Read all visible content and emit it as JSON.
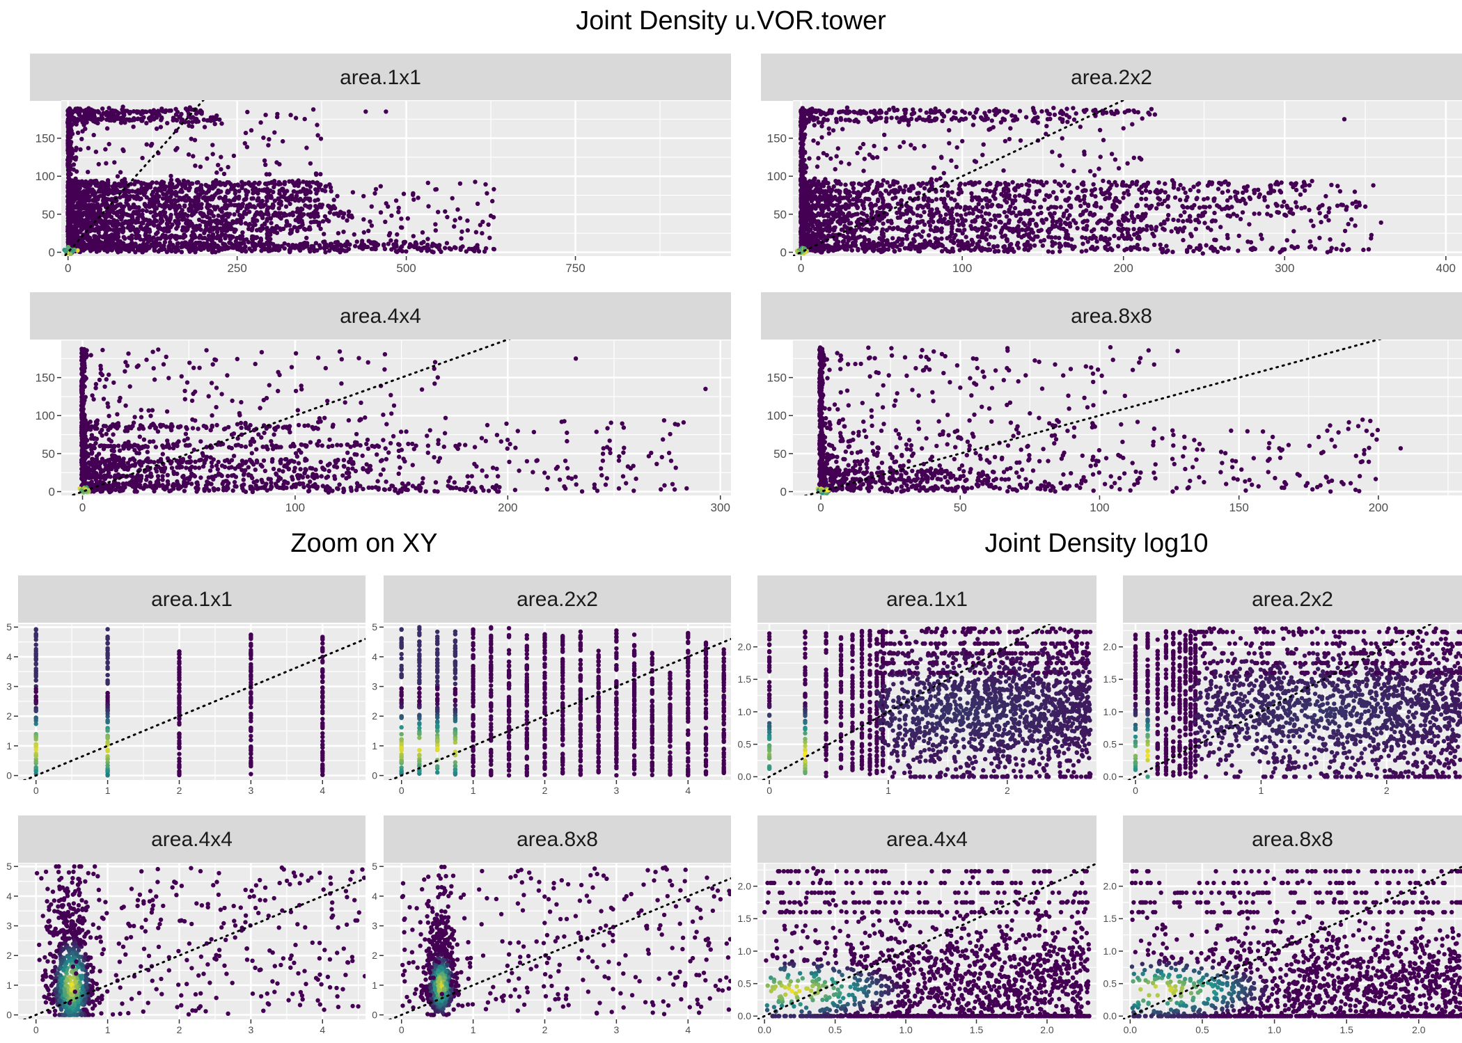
{
  "titles": {
    "main": "Joint Density u.VOR.tower",
    "zoom": "Zoom on XY",
    "log": "Joint Density log10"
  },
  "colors": {
    "panel_bg": "#ebebeb",
    "strip_bg": "#d9d9d9",
    "grid": "#ffffff",
    "point_low": "#440154",
    "point_mid": "#21908c",
    "point_high": "#fde725"
  },
  "chart_data": [
    {
      "type": "scatter",
      "group": "Joint Density u.VOR.tower",
      "facet": "area.1x1",
      "xlim": [
        -10,
        980
      ],
      "ylim": [
        -5,
        200
      ],
      "x_ticks": [
        0,
        250,
        500,
        750
      ],
      "x_tick_labels": [
        "0",
        "250",
        "500",
        "750"
      ],
      "y_ticks": [
        0,
        50,
        100,
        150
      ],
      "y_tick_labels": [
        "0",
        "50",
        "100",
        "150"
      ],
      "bands_y": [
        185,
        175,
        90,
        80,
        70,
        60,
        50,
        40,
        30,
        20,
        10,
        5
      ],
      "band_x_ends": [
        200,
        220,
        390,
        390,
        380,
        400,
        420,
        380,
        360,
        300,
        560,
        620
      ],
      "scatter_x_max": 630,
      "scatter_y_max": 188,
      "isolated_points": [
        [
          440,
          185
        ],
        [
          470,
          185
        ],
        [
          625,
          48
        ],
        [
          612,
          25
        ],
        [
          560,
          12
        ]
      ],
      "hotspot": [
        2,
        2
      ],
      "diagonal": true
    },
    {
      "type": "scatter",
      "group": "Joint Density u.VOR.tower",
      "facet": "area.2x2",
      "xlim": [
        -5,
        410
      ],
      "ylim": [
        -5,
        200
      ],
      "x_ticks": [
        0,
        100,
        200,
        300,
        400
      ],
      "x_tick_labels": [
        "0",
        "100",
        "200",
        "300",
        "400"
      ],
      "y_ticks": [
        0,
        50,
        100,
        150
      ],
      "y_tick_labels": [
        "0",
        "50",
        "100",
        "150"
      ],
      "bands_y": [
        185,
        175,
        90,
        80,
        70,
        60,
        50,
        40,
        30,
        20,
        10,
        5
      ],
      "band_x_ends": [
        220,
        170,
        320,
        300,
        280,
        350,
        330,
        260,
        240,
        210,
        190,
        330
      ],
      "scatter_x_max": 360,
      "scatter_y_max": 188,
      "isolated_points": [
        [
          337,
          175
        ],
        [
          355,
          88
        ],
        [
          280,
          5
        ],
        [
          270,
          70
        ],
        [
          350,
          60
        ]
      ],
      "hotspot": [
        1,
        1
      ],
      "diagonal": true
    },
    {
      "type": "scatter",
      "group": "Joint Density u.VOR.tower",
      "facet": "area.4x4",
      "xlim": [
        -10,
        305
      ],
      "ylim": [
        -5,
        200
      ],
      "x_ticks": [
        0,
        100,
        200,
        300
      ],
      "x_tick_labels": [
        "0",
        "100",
        "200",
        "300"
      ],
      "y_ticks": [
        0,
        50,
        100,
        150
      ],
      "y_tick_labels": [
        "0",
        "50",
        "100",
        "150"
      ],
      "bands_y": [
        85,
        60,
        40,
        30,
        20,
        10,
        5
      ],
      "band_x_ends": [
        120,
        180,
        150,
        140,
        130,
        110,
        200
      ],
      "scatter_x_max": 285,
      "scatter_y_max": 188,
      "isolated_points": [
        [
          272,
          3
        ],
        [
          280,
          88
        ],
        [
          293,
          135
        ],
        [
          245,
          57
        ],
        [
          232,
          175
        ]
      ],
      "hotspot": [
        1,
        1
      ],
      "diagonal": true
    },
    {
      "type": "scatter",
      "group": "Joint Density u.VOR.tower",
      "facet": "area.8x8",
      "xlim": [
        -10,
        230
      ],
      "ylim": [
        -5,
        200
      ],
      "x_ticks": [
        0,
        50,
        100,
        150,
        200
      ],
      "x_tick_labels": [
        "0",
        "50",
        "100",
        "150",
        "200"
      ],
      "y_ticks": [
        0,
        50,
        100,
        150
      ],
      "y_tick_labels": [
        "0",
        "50",
        "100",
        "150"
      ],
      "bands_y": [
        5,
        15,
        25
      ],
      "band_x_ends": [
        90,
        70,
        60
      ],
      "scatter_x_max": 200,
      "scatter_y_max": 190,
      "isolated_points": [
        [
          192,
          47
        ],
        [
          208,
          57
        ],
        [
          171,
          23
        ],
        [
          137,
          55
        ],
        [
          128,
          185
        ]
      ],
      "hotspot": [
        1,
        1
      ],
      "diagonal": true
    },
    {
      "type": "scatter",
      "group": "Zoom on XY",
      "facet": "area.1x1",
      "xlim": [
        -0.25,
        4.6
      ],
      "ylim": [
        -0.15,
        5.1
      ],
      "x_ticks": [
        0,
        1,
        2,
        3,
        4
      ],
      "x_tick_labels": [
        "0",
        "1",
        "2",
        "3",
        "4"
      ],
      "y_ticks": [
        0,
        1,
        2,
        3,
        4,
        5
      ],
      "y_tick_labels": [
        "0",
        "1",
        "2",
        "3",
        "4",
        "5"
      ],
      "columns_x": [
        0,
        1,
        2,
        3,
        4
      ],
      "column_y_max": [
        5,
        5,
        4.2,
        4.8,
        4.7
      ],
      "hot_columns": [
        0,
        1
      ],
      "diagonal": true
    },
    {
      "type": "scatter",
      "group": "Zoom on XY",
      "facet": "area.2x2",
      "xlim": [
        -0.25,
        4.6
      ],
      "ylim": [
        -0.15,
        5.1
      ],
      "x_ticks": [
        0,
        1,
        2,
        3,
        4
      ],
      "x_tick_labels": [
        "0",
        "1",
        "2",
        "3",
        "4"
      ],
      "y_ticks": [
        0,
        1,
        2,
        3,
        4,
        5
      ],
      "y_tick_labels": [
        "0",
        "1",
        "2",
        "3",
        "4",
        "5"
      ],
      "columns_x": [
        0,
        0.25,
        0.5,
        0.75,
        1,
        1.25,
        1.5,
        1.75,
        2,
        2.25,
        2.5,
        2.75,
        3,
        3.25,
        3.5,
        3.75,
        4,
        4.25,
        4.5
      ],
      "column_y_max": [
        5,
        5,
        5,
        5,
        5,
        5,
        5,
        4.9,
        4.9,
        4.8,
        4.9,
        4.2,
        4.9,
        4.8,
        4.2,
        3.5,
        4.8,
        4.5,
        4.3
      ],
      "hot_columns": [
        0,
        1,
        2,
        3
      ],
      "diagonal": true
    },
    {
      "type": "scatter",
      "group": "Zoom on XY",
      "facet": "area.4x4",
      "xlim": [
        -0.25,
        4.6
      ],
      "ylim": [
        -0.15,
        5.1
      ],
      "x_ticks": [
        0,
        1,
        2,
        3,
        4
      ],
      "x_tick_labels": [
        "0",
        "1",
        "2",
        "3",
        "4"
      ],
      "y_ticks": [
        0,
        1,
        2,
        3,
        4,
        5
      ],
      "y_tick_labels": [
        "0",
        "1",
        "2",
        "3",
        "4",
        "5"
      ],
      "cloud_center": [
        0.5,
        1.0
      ],
      "cloud_spread": [
        0.3,
        1.8
      ],
      "diagonal": true
    },
    {
      "type": "scatter",
      "group": "Zoom on XY",
      "facet": "area.8x8",
      "xlim": [
        -0.25,
        4.6
      ],
      "ylim": [
        -0.15,
        5.1
      ],
      "x_ticks": [
        0,
        1,
        2,
        3,
        4
      ],
      "x_tick_labels": [
        "0",
        "1",
        "2",
        "3",
        "4"
      ],
      "y_ticks": [
        0,
        1,
        2,
        3,
        4,
        5
      ],
      "y_tick_labels": [
        "0",
        "1",
        "2",
        "3",
        "4",
        "5"
      ],
      "cloud_center": [
        0.55,
        1.0
      ],
      "cloud_spread": [
        0.2,
        1.2
      ],
      "diagonal": true
    },
    {
      "type": "scatter",
      "group": "Joint Density log10",
      "facet": "area.1x1",
      "xlim": [
        -0.1,
        2.75
      ],
      "ylim": [
        -0.05,
        2.35
      ],
      "x_ticks": [
        0,
        1,
        2
      ],
      "x_tick_labels": [
        "0",
        "1",
        "2"
      ],
      "y_ticks": [
        0,
        0.5,
        1,
        1.5,
        2
      ],
      "y_tick_labels": [
        "0.0",
        "0.5",
        "1.0",
        "1.5",
        "2.0"
      ],
      "columns_x": [
        0,
        0.301,
        0.477,
        0.602,
        0.699,
        0.778,
        0.845,
        0.903,
        0.954
      ],
      "cloud_center": [
        1.6,
        1.0
      ],
      "cloud_x_range": [
        0.9,
        2.7
      ],
      "diagonal": true
    },
    {
      "type": "scatter",
      "group": "Joint Density log10",
      "facet": "area.2x2",
      "xlim": [
        -0.1,
        2.6
      ],
      "ylim": [
        -0.05,
        2.35
      ],
      "x_ticks": [
        0,
        1,
        2
      ],
      "x_tick_labels": [
        "0",
        "1",
        "2"
      ],
      "y_ticks": [
        0,
        0.5,
        1,
        1.5,
        2
      ],
      "y_tick_labels": [
        "0.0",
        "0.5",
        "1.0",
        "1.5",
        "2.0"
      ],
      "columns_x": [
        0,
        0.097,
        0.176,
        0.243,
        0.301,
        0.352,
        0.398,
        0.439,
        0.477
      ],
      "cloud_center": [
        1.5,
        1.0
      ],
      "cloud_x_range": [
        0.45,
        2.6
      ],
      "diagonal": true
    },
    {
      "type": "scatter",
      "group": "Joint Density log10",
      "facet": "area.4x4",
      "xlim": [
        -0.05,
        2.35
      ],
      "ylim": [
        -0.05,
        2.35
      ],
      "x_ticks": [
        0,
        0.5,
        1,
        1.5,
        2
      ],
      "x_tick_labels": [
        "0.0",
        "0.5",
        "1.0",
        "1.5",
        "2.0"
      ],
      "y_ticks": [
        0,
        0.5,
        1,
        1.5,
        2
      ],
      "y_tick_labels": [
        "0.0",
        "0.5",
        "1.0",
        "1.5",
        "2.0"
      ],
      "cloud_center": [
        0.2,
        0.4
      ],
      "cloud_x_range": [
        0.0,
        2.3
      ],
      "diagonal": true
    },
    {
      "type": "scatter",
      "group": "Joint Density log10",
      "facet": "area.8x8",
      "xlim": [
        -0.05,
        2.3
      ],
      "ylim": [
        -0.05,
        2.35
      ],
      "x_ticks": [
        0,
        0.5,
        1,
        1.5,
        2
      ],
      "x_tick_labels": [
        "0.0",
        "0.5",
        "1.0",
        "1.5",
        "2.0"
      ],
      "y_ticks": [
        0,
        0.5,
        1,
        1.5,
        2
      ],
      "y_tick_labels": [
        "0.0",
        "0.5",
        "1.0",
        "1.5",
        "2.0"
      ],
      "cloud_center": [
        0.2,
        0.4
      ],
      "cloud_x_range": [
        0.0,
        2.3
      ],
      "diagonal": true
    }
  ]
}
